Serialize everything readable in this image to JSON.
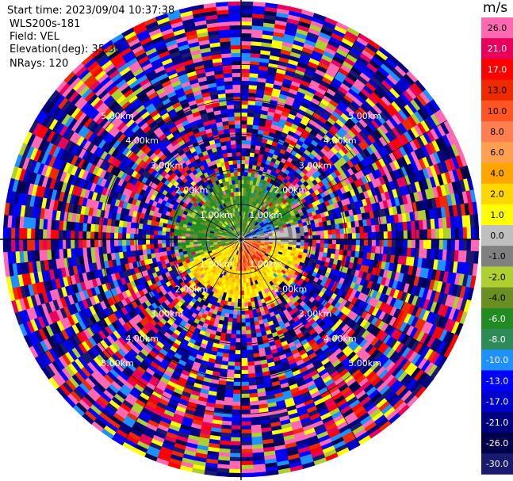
{
  "header": {
    "start_time": "Start time: 2023/09/04 10:37:38",
    "instrument": "WLS200s-181",
    "field": "Field: VEL",
    "elevation": "Elevation(deg): 35.30",
    "nrays": "NRays: 120"
  },
  "chart_data": {
    "type": "ppi",
    "field": "VEL",
    "nrays": 120,
    "max_range_km": 6.8,
    "range_rings_km": [
      1,
      2,
      3,
      4,
      5
    ],
    "ring_labels": [
      "1.00km",
      "2.00km",
      "3.00km",
      "4.00km",
      "5.00km"
    ],
    "colorbar": {
      "unit": "m/s",
      "ticks": [
        "26.0",
        "21.0",
        "17.0",
        "13.0",
        "10.0",
        "8.0",
        "6.0",
        "4.0",
        "2.0",
        "1.0",
        "0.0",
        "-1.0",
        "-2.0",
        "-4.0",
        "-6.0",
        "-8.0",
        "-10.0",
        "-13.0",
        "-17.0",
        "-21.0",
        "-26.0",
        "-30.0"
      ],
      "colors": [
        "#ff69b4",
        "#e8005a",
        "#ff0000",
        "#ee2a00",
        "#ff5522",
        "#ff7f50",
        "#ff9f50",
        "#ffa500",
        "#ffd700",
        "#ffff00",
        "#bfbfbf",
        "#808080",
        "#adcf30",
        "#6b8e23",
        "#228b22",
        "#2e8b57",
        "#1e90ff",
        "#0000ff",
        "#0000cd",
        "#000080",
        "#00004a",
        "#191970"
      ]
    }
  }
}
